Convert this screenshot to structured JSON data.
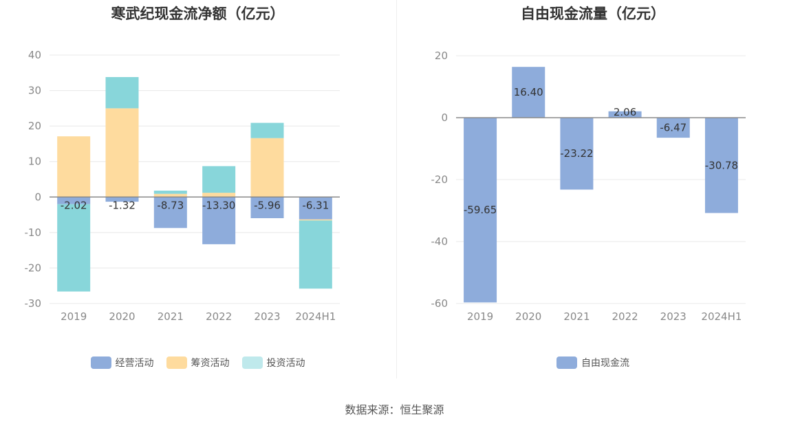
{
  "source": "数据来源：恒生聚源",
  "colors": {
    "operating": "#8eacdb",
    "financing": "#fedb9e",
    "investing": "#88d6da",
    "free": "#8eacdb"
  },
  "chart_data": [
    {
      "type": "bar",
      "stacked": true,
      "title": "寒武纪现金流净额（亿元）",
      "categories": [
        "2019",
        "2020",
        "2021",
        "2022",
        "2023",
        "2024H1"
      ],
      "ylim": [
        -30,
        40
      ],
      "yticks": [
        40,
        30,
        20,
        10,
        0,
        -10,
        -20,
        -30
      ],
      "grid": true,
      "legend_position": "bottom",
      "series": [
        {
          "name": "经营活动",
          "values": [
            -2.02,
            -1.32,
            -8.73,
            -13.3,
            -5.96,
            -6.31
          ],
          "labels": [
            "-2.02",
            "-1.32",
            "-8.73",
            "-13.30",
            "-5.96",
            "-6.31"
          ]
        },
        {
          "name": "筹资活动",
          "values": [
            17.1,
            25.0,
            0.9,
            1.2,
            16.6,
            -0.3
          ]
        },
        {
          "name": "投资活动",
          "values": [
            -24.6,
            8.8,
            0.9,
            7.5,
            4.3,
            -19.2
          ]
        }
      ]
    },
    {
      "type": "bar",
      "title": "自由现金流量（亿元）",
      "categories": [
        "2019",
        "2020",
        "2021",
        "2022",
        "2023",
        "2024H1"
      ],
      "ylim": [
        -60,
        20
      ],
      "yticks": [
        20,
        0,
        -20,
        -40,
        -60
      ],
      "grid": true,
      "legend_position": "bottom",
      "series": [
        {
          "name": "自由现金流",
          "values": [
            -59.65,
            16.4,
            -23.22,
            2.06,
            -6.47,
            -30.78
          ],
          "labels": [
            "-59.65",
            "16.40",
            "-23.22",
            "2.06",
            "-6.47",
            "-30.78"
          ]
        }
      ]
    }
  ]
}
